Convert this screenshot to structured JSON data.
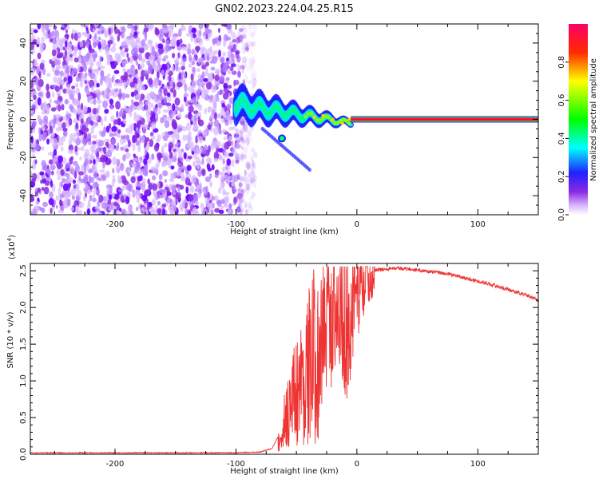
{
  "figure": {
    "title": "GN02.2023.224.04.25.R15"
  },
  "chart_data": [
    {
      "type": "heatmap",
      "xlabel": "Height of straight line (km)",
      "ylabel": "Frequency (Hz)",
      "xlim": [
        -270,
        150
      ],
      "ylim": [
        -50,
        50
      ],
      "xticks": [
        -200,
        -100,
        0,
        100
      ],
      "yticks": [
        -40,
        -20,
        0,
        20,
        40
      ],
      "colorbar": {
        "label": "Normalized spectral amplitude",
        "ticks": [
          "0.0",
          "0.2",
          "0.4",
          "0.6",
          "0.8"
        ],
        "range": [
          0,
          1
        ],
        "colors": [
          "#ffffff",
          "#9c40ff",
          "#2020ff",
          "#00ffff",
          "#00ff00",
          "#ffff00",
          "#ff0000",
          "#ff0060"
        ]
      },
      "features": {
        "noise_region_x": [
          -270,
          -90
        ],
        "transition_x": [
          -100,
          -5
        ],
        "carrier_line_x": [
          -5,
          150
        ],
        "carrier_frequency": 0
      }
    },
    {
      "type": "line",
      "xlabel": "Height of straight line (km)",
      "ylabel": "SNR (10 * v/v)",
      "y_multiplier": "(x10",
      "y_multiplier_exp": "4",
      "y_multiplier_close": ")",
      "xlim": [
        -270,
        150
      ],
      "ylim": [
        0,
        2.6
      ],
      "xticks": [
        -200,
        -100,
        0,
        100
      ],
      "yticks": [
        "0.0",
        "0.5",
        "1.0",
        "1.5",
        "2.0",
        "2.5"
      ],
      "line_color": "#ee3333",
      "series": [
        {
          "x": [
            -270,
            -100,
            -80,
            -70,
            -62,
            -57,
            -52,
            -47,
            -42,
            -37,
            -32,
            -27,
            -22,
            -17,
            -12,
            -7,
            -2,
            3,
            8,
            13,
            20,
            30,
            40,
            50,
            60,
            70,
            80,
            90,
            100,
            110,
            120,
            130,
            140,
            150
          ],
          "values": [
            0.02,
            0.02,
            0.03,
            0.08,
            0.35,
            0.6,
            0.8,
            0.95,
            1.1,
            1.3,
            1.45,
            1.6,
            1.8,
            2.0,
            1.85,
            1.7,
            2.1,
            2.3,
            2.4,
            2.5,
            2.52,
            2.54,
            2.53,
            2.51,
            2.49,
            2.47,
            2.44,
            2.4,
            2.36,
            2.32,
            2.27,
            2.22,
            2.17,
            2.1
          ]
        }
      ]
    }
  ]
}
